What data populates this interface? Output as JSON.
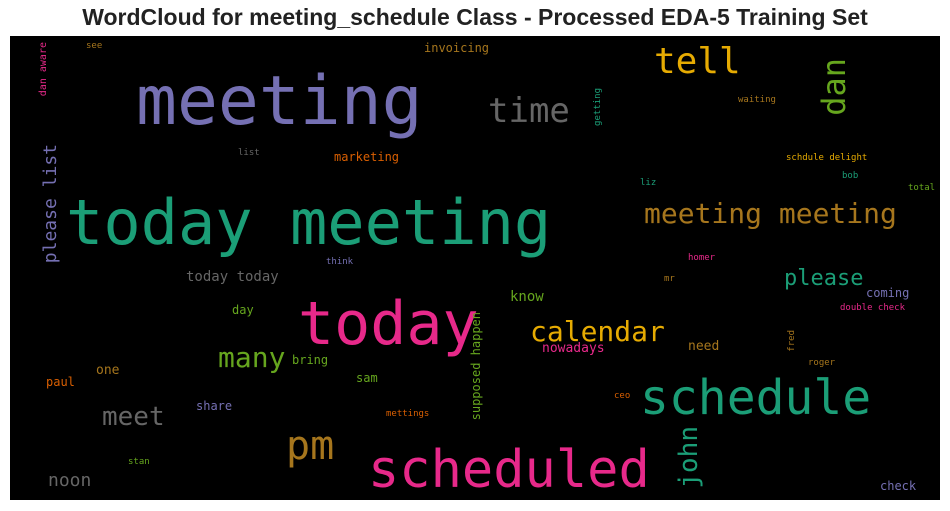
{
  "title": "WordCloud for meeting_schedule Class - Processed EDA-5 Training Set",
  "colors": {
    "background": "#000000",
    "purple": "#7570b3",
    "teal": "#1b9e77",
    "pink": "#e7298a",
    "gold": "#e6ab02",
    "orange": "#d95f02",
    "green": "#66a61e",
    "brown": "#a6761d",
    "gray": "#666666"
  },
  "words": [
    {
      "text": "meeting",
      "color": "#7570b3"
    },
    {
      "text": "today meeting",
      "color": "#1b9e77"
    },
    {
      "text": "today",
      "color": "#e7298a"
    },
    {
      "text": "scheduled",
      "color": "#e7298a"
    },
    {
      "text": "schedule",
      "color": "#1b9e77"
    },
    {
      "text": "pm",
      "color": "#a6761d"
    },
    {
      "text": "tell",
      "color": "#e6ab02"
    },
    {
      "text": "time",
      "color": "#666666"
    },
    {
      "text": "dan",
      "color": "#66a61e"
    },
    {
      "text": "meeting meeting",
      "color": "#a6761d"
    },
    {
      "text": "calendar",
      "color": "#e6ab02"
    },
    {
      "text": "many",
      "color": "#66a61e"
    },
    {
      "text": "meet",
      "color": "#666666"
    },
    {
      "text": "john",
      "color": "#1b9e77"
    },
    {
      "text": "please",
      "color": "#1b9e77"
    },
    {
      "text": "please list",
      "color": "#7570b3"
    },
    {
      "text": "noon",
      "color": "#666666"
    },
    {
      "text": "today today",
      "color": "#666666"
    },
    {
      "text": "know",
      "color": "#66a61e"
    },
    {
      "text": "nowadays",
      "color": "#e7298a"
    },
    {
      "text": "need",
      "color": "#a6761d"
    },
    {
      "text": "one",
      "color": "#a6761d"
    },
    {
      "text": "share",
      "color": "#7570b3"
    },
    {
      "text": "paul",
      "color": "#d95f02"
    },
    {
      "text": "sam",
      "color": "#66a61e"
    },
    {
      "text": "bring",
      "color": "#66a61e"
    },
    {
      "text": "day",
      "color": "#66a61e"
    },
    {
      "text": "supposed happen",
      "color": "#66a61e"
    },
    {
      "text": "marketing",
      "color": "#d95f02"
    },
    {
      "text": "invoicing",
      "color": "#a6761d"
    },
    {
      "text": "coming",
      "color": "#7570b3"
    },
    {
      "text": "check",
      "color": "#7570b3"
    },
    {
      "text": "dan aware",
      "color": "#e7298a"
    },
    {
      "text": "see",
      "color": "#a6761d"
    },
    {
      "text": "list",
      "color": "#666666"
    },
    {
      "text": "getting",
      "color": "#1b9e77"
    },
    {
      "text": "waiting",
      "color": "#a6761d"
    },
    {
      "text": "schdule delight",
      "color": "#e6ab02"
    },
    {
      "text": "bob",
      "color": "#1b9e77"
    },
    {
      "text": "liz",
      "color": "#1b9e77"
    },
    {
      "text": "total",
      "color": "#66a61e"
    },
    {
      "text": "think",
      "color": "#7570b3"
    },
    {
      "text": "homer",
      "color": "#e7298a"
    },
    {
      "text": "mr",
      "color": "#a6761d"
    },
    {
      "text": "double check",
      "color": "#e7298a"
    },
    {
      "text": "fred",
      "color": "#a6761d"
    },
    {
      "text": "roger",
      "color": "#a6761d"
    },
    {
      "text": "ceo",
      "color": "#d95f02"
    },
    {
      "text": "mettings",
      "color": "#d95f02"
    },
    {
      "text": "stan",
      "color": "#66a61e"
    }
  ]
}
